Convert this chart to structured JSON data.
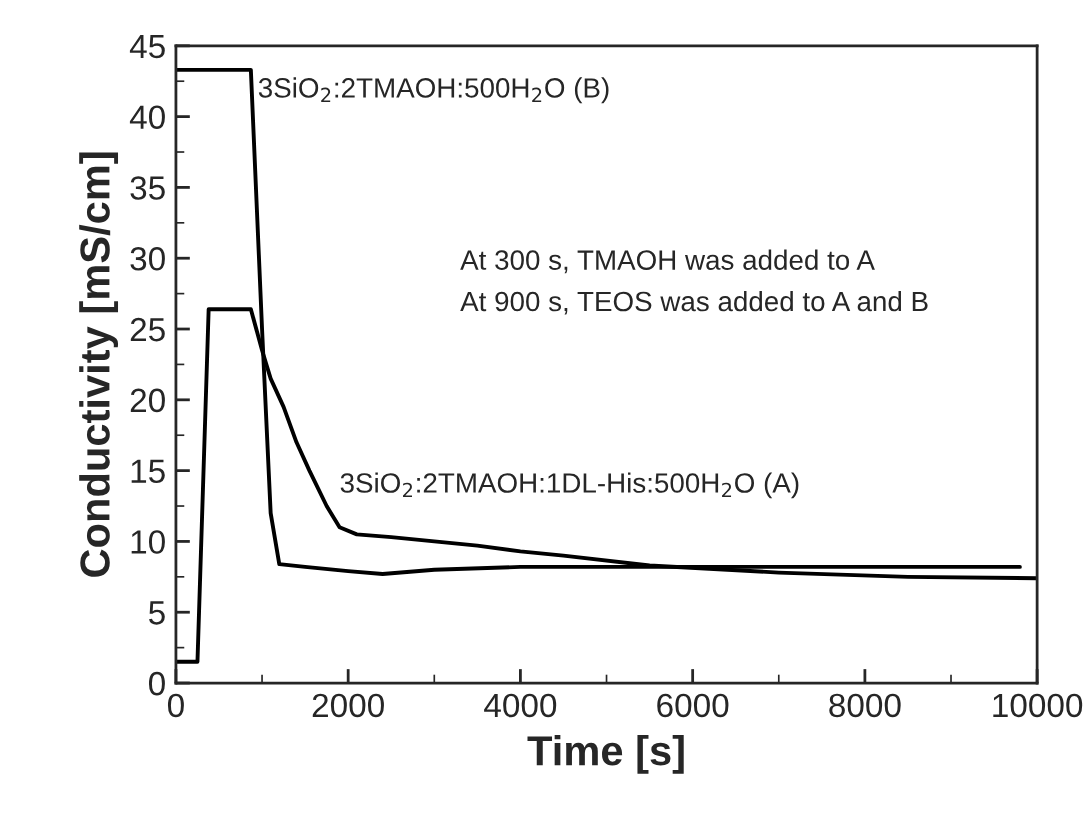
{
  "chart_data": {
    "type": "line",
    "xlabel": "Time [s]",
    "ylabel": "Conductivity [mS/cm]",
    "xlim": [
      0,
      10000
    ],
    "xticks": [
      0,
      2000,
      4000,
      6000,
      8000,
      10000
    ],
    "ylim": [
      0,
      45
    ],
    "yticks": [
      0,
      5,
      10,
      15,
      20,
      25,
      30,
      35,
      40,
      45
    ],
    "grid": false,
    "legend": false,
    "marker": "none",
    "line_style": "solid",
    "annotations": [
      "At 300 s, TMAOH was added to A",
      "At 900 s, TEOS was added to A and B"
    ],
    "series": [
      {
        "name": "3SiO$_{2}$:2TMAOH:500H$_{2}$O (B)",
        "color": "#000000",
        "x": [
          0,
          870,
          1000,
          1100,
          1200,
          1500,
          2000,
          2400,
          3000,
          4000,
          6000,
          8000,
          9800
        ],
        "values": [
          43.3,
          43.3,
          25,
          12,
          8.4,
          8.2,
          7.9,
          7.7,
          8.0,
          8.2,
          8.2,
          8.2,
          8.2
        ]
      },
      {
        "name": "3SiO$_{2}$:2TMAOH:1DL-His:500H$_{2}$O (A)",
        "color": "#000000",
        "x": [
          0,
          250,
          380,
          870,
          1000,
          1100,
          1250,
          1400,
          1550,
          1750,
          1900,
          2100,
          2500,
          3000,
          3500,
          4000,
          4500,
          5500,
          7000,
          8500,
          10000
        ],
        "values": [
          1.5,
          1.5,
          26.4,
          26.4,
          23.5,
          21.5,
          19.5,
          17,
          15,
          12.5,
          11,
          10.5,
          10.3,
          10.0,
          9.7,
          9.3,
          9.0,
          8.3,
          7.8,
          7.5,
          7.4
        ]
      }
    ]
  }
}
